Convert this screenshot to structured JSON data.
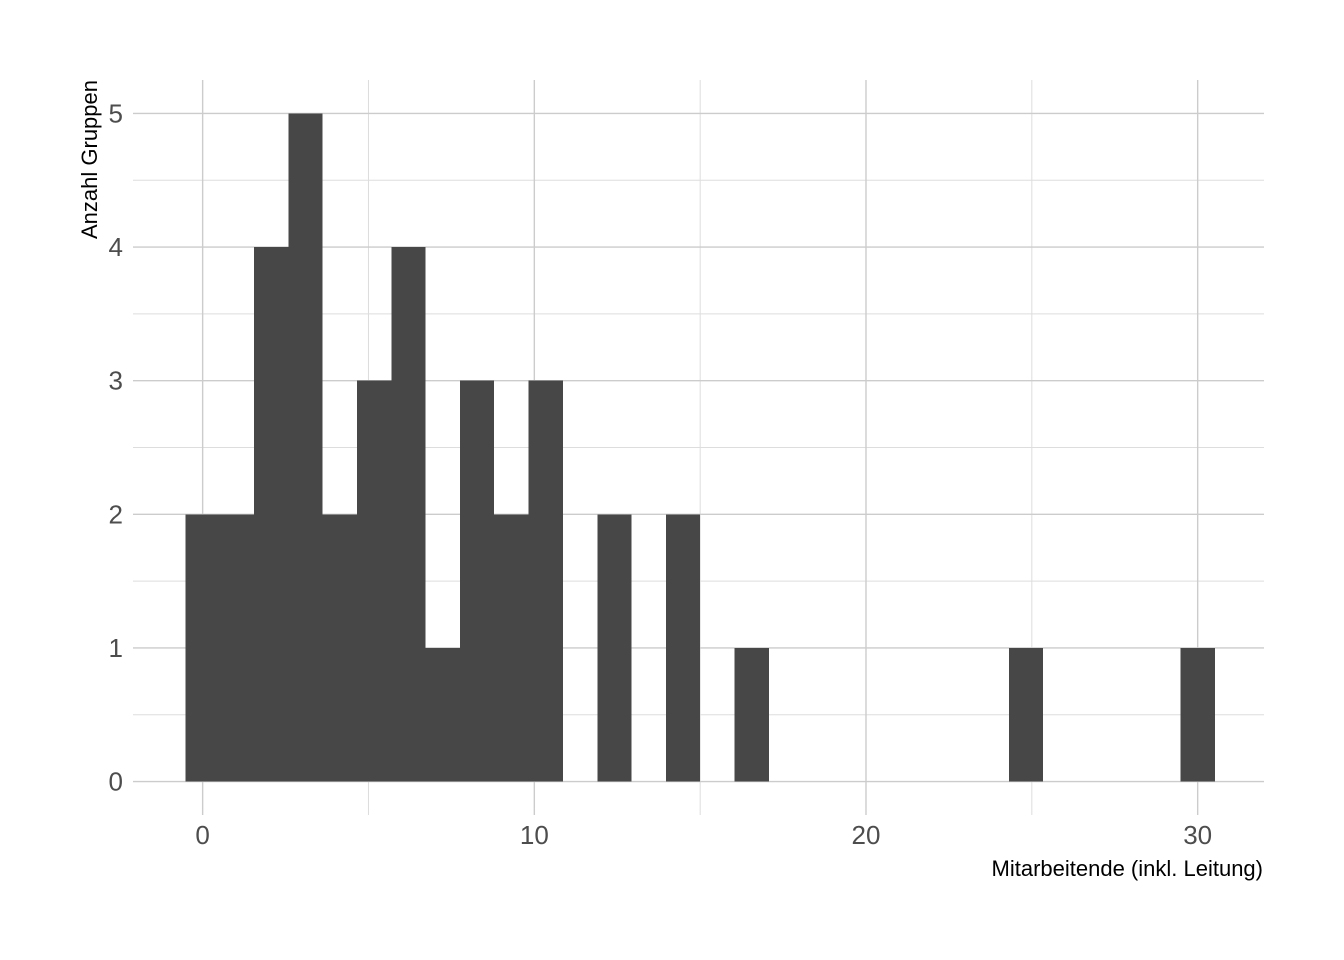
{
  "chart_data": {
    "type": "bar",
    "subtype": "histogram",
    "title": "",
    "xlabel": "Mitarbeitende (inkl. Leitung)",
    "ylabel": "Anzahl Gruppen",
    "xlim": [
      -2.1,
      32.0
    ],
    "ylim": [
      -0.25,
      5.25
    ],
    "xticks": [
      0,
      10,
      20,
      30
    ],
    "yticks": [
      0,
      1,
      2,
      3,
      4,
      5
    ],
    "bin_width": 1.0344,
    "bins": [
      {
        "x0": -0.52,
        "x1": 0.52,
        "count": 2
      },
      {
        "x0": 0.52,
        "x1": 1.55,
        "count": 2
      },
      {
        "x0": 1.55,
        "x1": 2.59,
        "count": 4
      },
      {
        "x0": 2.59,
        "x1": 3.62,
        "count": 5
      },
      {
        "x0": 3.62,
        "x1": 4.66,
        "count": 2
      },
      {
        "x0": 4.66,
        "x1": 5.69,
        "count": 3
      },
      {
        "x0": 5.69,
        "x1": 6.72,
        "count": 4
      },
      {
        "x0": 6.72,
        "x1": 7.76,
        "count": 1
      },
      {
        "x0": 7.76,
        "x1": 8.79,
        "count": 3
      },
      {
        "x0": 8.79,
        "x1": 9.83,
        "count": 2
      },
      {
        "x0": 9.83,
        "x1": 10.86,
        "count": 3
      },
      {
        "x0": 11.9,
        "x1": 12.93,
        "count": 2
      },
      {
        "x0": 13.97,
        "x1": 15.0,
        "count": 2
      },
      {
        "x0": 16.03,
        "x1": 17.07,
        "count": 1
      },
      {
        "x0": 24.31,
        "x1": 25.34,
        "count": 1
      },
      {
        "x0": 29.48,
        "x1": 30.52,
        "count": 1
      }
    ],
    "bar_color": "#474747",
    "grid": true,
    "legend": "none"
  }
}
